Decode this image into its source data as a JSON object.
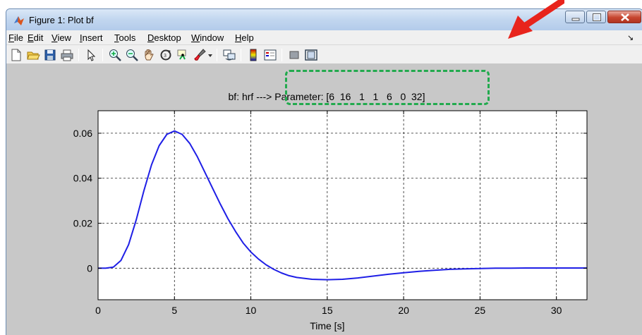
{
  "window": {
    "title": "Figure 1: Plot bf"
  },
  "menubar": {
    "items": [
      {
        "accel": "F",
        "rest": "ile"
      },
      {
        "accel": "E",
        "rest": "dit"
      },
      {
        "accel": "V",
        "rest": "iew"
      },
      {
        "accel": "I",
        "rest": "nsert"
      },
      {
        "accel": "T",
        "rest": "ools"
      },
      {
        "accel": "D",
        "rest": "esktop"
      },
      {
        "accel": "W",
        "rest": "indow"
      },
      {
        "accel": "H",
        "rest": "elp"
      }
    ]
  },
  "toolbar": {
    "icons": [
      "new-figure-icon",
      "open-file-icon",
      "save-icon",
      "print-icon",
      "pointer-icon",
      "zoom-in-icon",
      "zoom-out-icon",
      "pan-hand-icon",
      "rotate-3d-icon",
      "data-cursor-icon",
      "brush-icon",
      "link-plot-icon",
      "colorbar-icon",
      "legend-icon",
      "hide-plot-tools-icon",
      "show-plot-tools-icon"
    ]
  },
  "colors": {
    "line": "#1f1fe6",
    "highlight": "#22aa4e",
    "arrow": "#e8241c"
  },
  "chart_data": {
    "type": "line",
    "title": "bf: hrf ---> Parameter: [6  16   1   1   6   0  32]",
    "xlabel": "Time [s]",
    "ylabel": "",
    "xlim": [
      0,
      32
    ],
    "ylim": [
      -0.014,
      0.07
    ],
    "xticks": [
      0,
      5,
      10,
      15,
      20,
      25,
      30
    ],
    "yticks": [
      0,
      0.02,
      0.04,
      0.06
    ],
    "xtick_labels": [
      "0",
      "5",
      "10",
      "15",
      "20",
      "25",
      "30"
    ],
    "ytick_labels": [
      "0",
      "0.02",
      "0.04",
      "0.06"
    ],
    "grid": true,
    "series": [
      {
        "x": [
          0,
          0.5,
          1,
          1.5,
          2,
          2.5,
          3,
          3.5,
          4,
          4.5,
          5,
          5.5,
          6,
          6.5,
          7,
          7.5,
          8,
          8.5,
          9,
          9.5,
          10,
          10.5,
          11,
          11.5,
          12,
          12.5,
          13,
          14,
          15,
          16,
          17,
          18,
          19,
          20,
          21,
          22,
          23,
          24,
          25,
          26,
          27,
          28,
          29,
          30,
          31,
          32
        ],
        "y": [
          0,
          0,
          0.0005,
          0.0035,
          0.0105,
          0.0215,
          0.0345,
          0.046,
          0.0545,
          0.0595,
          0.061,
          0.0595,
          0.0555,
          0.0495,
          0.0425,
          0.0355,
          0.0285,
          0.022,
          0.0163,
          0.0112,
          0.0072,
          0.0041,
          0.0015,
          -0.0005,
          -0.0021,
          -0.0033,
          -0.0041,
          -0.0049,
          -0.0051,
          -0.0049,
          -0.0043,
          -0.0035,
          -0.0027,
          -0.002,
          -0.0014,
          -0.0009,
          -0.0005,
          -0.0003,
          -0.0001,
          0,
          0,
          0.0001,
          0.0001,
          0.0001,
          0.0001,
          0.0001
        ]
      }
    ]
  }
}
